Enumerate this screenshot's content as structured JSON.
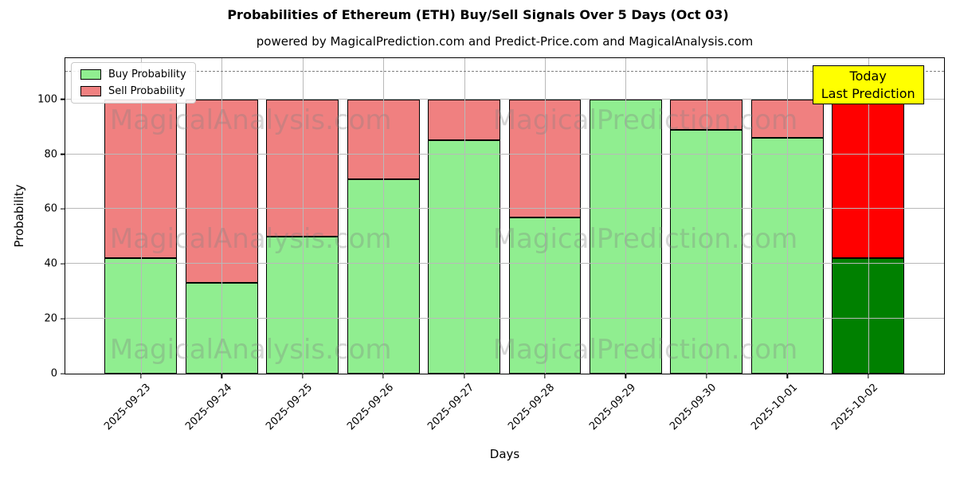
{
  "chart_data": {
    "type": "bar",
    "stacked": true,
    "title": "Probabilities of Ethereum (ETH) Buy/Sell Signals Over 5 Days (Oct 03)",
    "subtitle": "powered by MagicalPrediction.com and Predict-Price.com and MagicalAnalysis.com",
    "xlabel": "Days",
    "ylabel": "Probability",
    "categories": [
      "2025-09-23",
      "2025-09-24",
      "2025-09-25",
      "2025-09-26",
      "2025-09-27",
      "2025-09-28",
      "2025-09-29",
      "2025-09-30",
      "2025-10-01",
      "2025-10-02"
    ],
    "series": [
      {
        "name": "Buy Probability",
        "color": "#90EE90",
        "values": [
          42,
          33,
          50,
          71,
          85,
          57,
          100,
          89,
          86,
          42
        ]
      },
      {
        "name": "Sell Probability",
        "color": "#F08080",
        "values": [
          58,
          67,
          50,
          29,
          15,
          43,
          0,
          11,
          14,
          58
        ]
      }
    ],
    "highlight_last_index": 9,
    "today_colors": {
      "buy": "#008000",
      "sell": "#FF0000"
    },
    "yticks": [
      0,
      20,
      40,
      60,
      80,
      100
    ],
    "ylim": [
      0,
      115
    ],
    "dashed_guide_y": 110,
    "grid": true,
    "legend_position": "upper left",
    "annotation": {
      "lines": [
        "Today",
        "Last Prediction"
      ],
      "bg": "#FFFF00"
    },
    "watermarks": {
      "left": "MagicalAnalysis.com",
      "right": "MagicalPrediction.com"
    }
  },
  "style_colors": {
    "grid": "#b9b9b9",
    "dashed_line": "#7f7f7f",
    "watermark": "#808080",
    "spine": "#000000",
    "background": "#ffffff"
  }
}
